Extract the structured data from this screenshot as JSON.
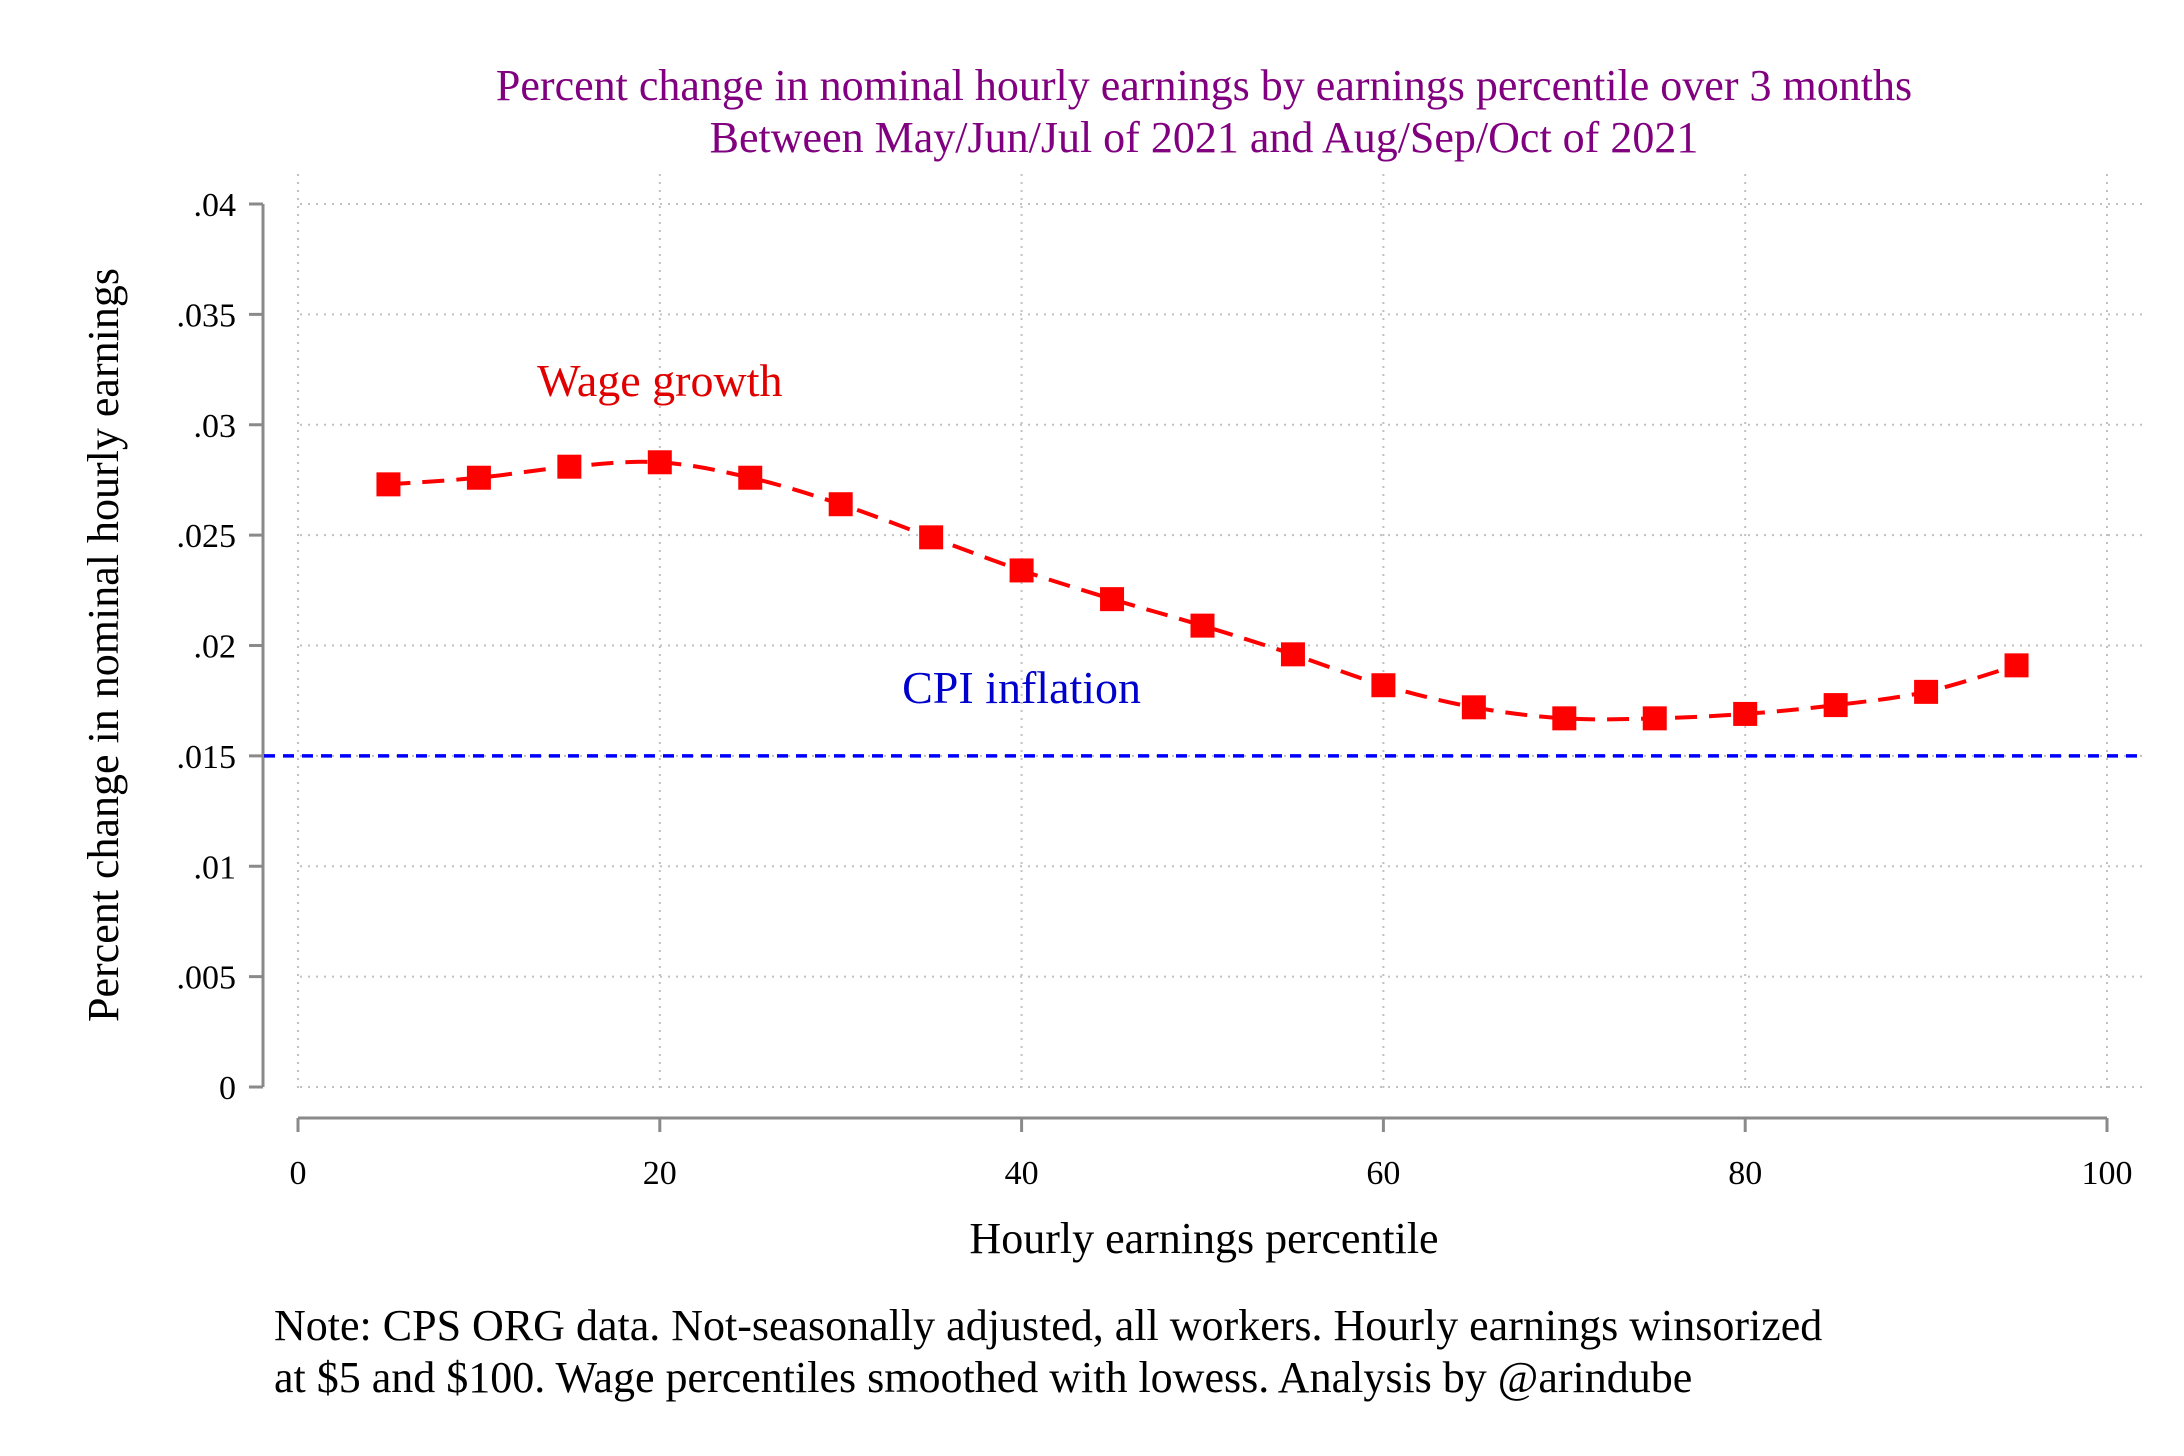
{
  "chart_data": {
    "type": "line",
    "title": "Percent change in nominal hourly earnings by earnings percentile over 3 months",
    "subtitle": "Between May/Jun/Jul of 2021 and Aug/Sep/Oct of 2021",
    "xlabel": "Hourly earnings percentile",
    "ylabel": "Percent change in nominal hourly earnings",
    "xlim": [
      0,
      100
    ],
    "ylim": [
      0,
      0.04
    ],
    "x_ticks": [
      "0",
      "20",
      "40",
      "60",
      "80",
      "100"
    ],
    "x_tick_values": [
      0,
      20,
      40,
      60,
      80,
      100
    ],
    "y_ticks": [
      "0",
      ".005",
      ".01",
      ".015",
      ".02",
      ".025",
      ".03",
      ".035",
      ".04"
    ],
    "y_tick_values": [
      0,
      0.005,
      0.01,
      0.015,
      0.02,
      0.025,
      0.03,
      0.035,
      0.04
    ],
    "grid": true,
    "series": [
      {
        "name": "Wage growth",
        "color": "#ff0000",
        "line_style": "dashed",
        "marker": "square",
        "x": [
          5,
          10,
          15,
          20,
          25,
          30,
          35,
          40,
          45,
          50,
          55,
          60,
          65,
          70,
          75,
          80,
          85,
          90,
          95
        ],
        "y": [
          0.0273,
          0.0276,
          0.0281,
          0.0283,
          0.0276,
          0.0264,
          0.0249,
          0.0234,
          0.0221,
          0.0209,
          0.0196,
          0.0182,
          0.0172,
          0.0167,
          0.0167,
          0.0169,
          0.0173,
          0.0179,
          0.0191
        ]
      }
    ],
    "reference_line": {
      "label": "CPI inflation",
      "y": 0.015,
      "color": "#0000ff",
      "line_style": "dashed"
    },
    "annotations": [
      {
        "text": "Wage growth",
        "x": 20,
        "y": 0.0313,
        "color": "#e00000"
      },
      {
        "text": "CPI inflation",
        "x": 40,
        "y": 0.0174,
        "color": "#0000cc"
      }
    ],
    "note_lines": [
      "Note: CPS ORG data. Not-seasonally adjusted, all workers. Hourly earnings winsorized",
      "at $5 and $100. Wage percentiles smoothed with lowess. Analysis by @arindube"
    ]
  }
}
